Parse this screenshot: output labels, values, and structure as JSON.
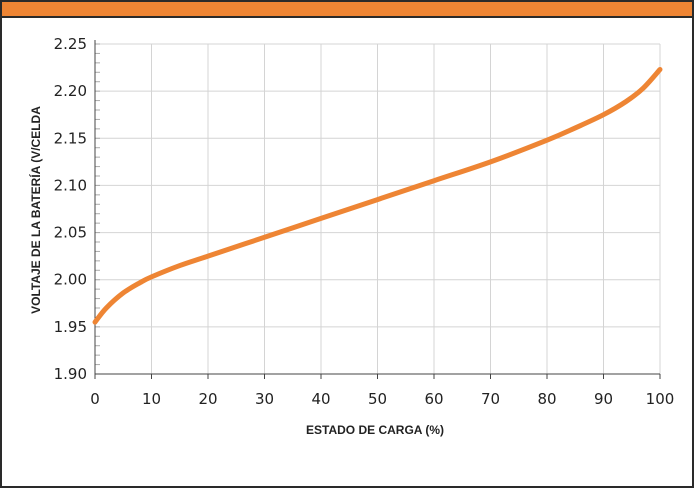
{
  "chart_data": {
    "type": "line",
    "title": "",
    "xlabel": "ESTADO DE CARGA (%)",
    "ylabel": "VOLTAJE DE LA BATERÍA (V/CELDA",
    "xlim": [
      0,
      100
    ],
    "ylim": [
      1.9,
      2.25
    ],
    "xticks": [
      "0",
      "10",
      "20",
      "30",
      "40",
      "50",
      "60",
      "70",
      "80",
      "90",
      "100"
    ],
    "yticks": [
      "1.90",
      "1.95",
      "2.00",
      "2.05",
      "2.10",
      "2.15",
      "2.20",
      "2.25"
    ],
    "grid": true,
    "series": [
      {
        "x": [
          0,
          2,
          5,
          8,
          10,
          15,
          20,
          30,
          40,
          50,
          60,
          70,
          80,
          85,
          90,
          94,
          97,
          100
        ],
        "y": [
          1.955,
          1.97,
          1.986,
          1.997,
          2.003,
          2.015,
          2.025,
          2.045,
          2.065,
          2.085,
          2.105,
          2.125,
          2.148,
          2.161,
          2.175,
          2.189,
          2.203,
          2.223
        ]
      }
    ],
    "colors": {
      "line": "#ee8534",
      "accent_bar": "#ee8534",
      "grid": "#d4d4d4",
      "axis": "#444444"
    }
  }
}
